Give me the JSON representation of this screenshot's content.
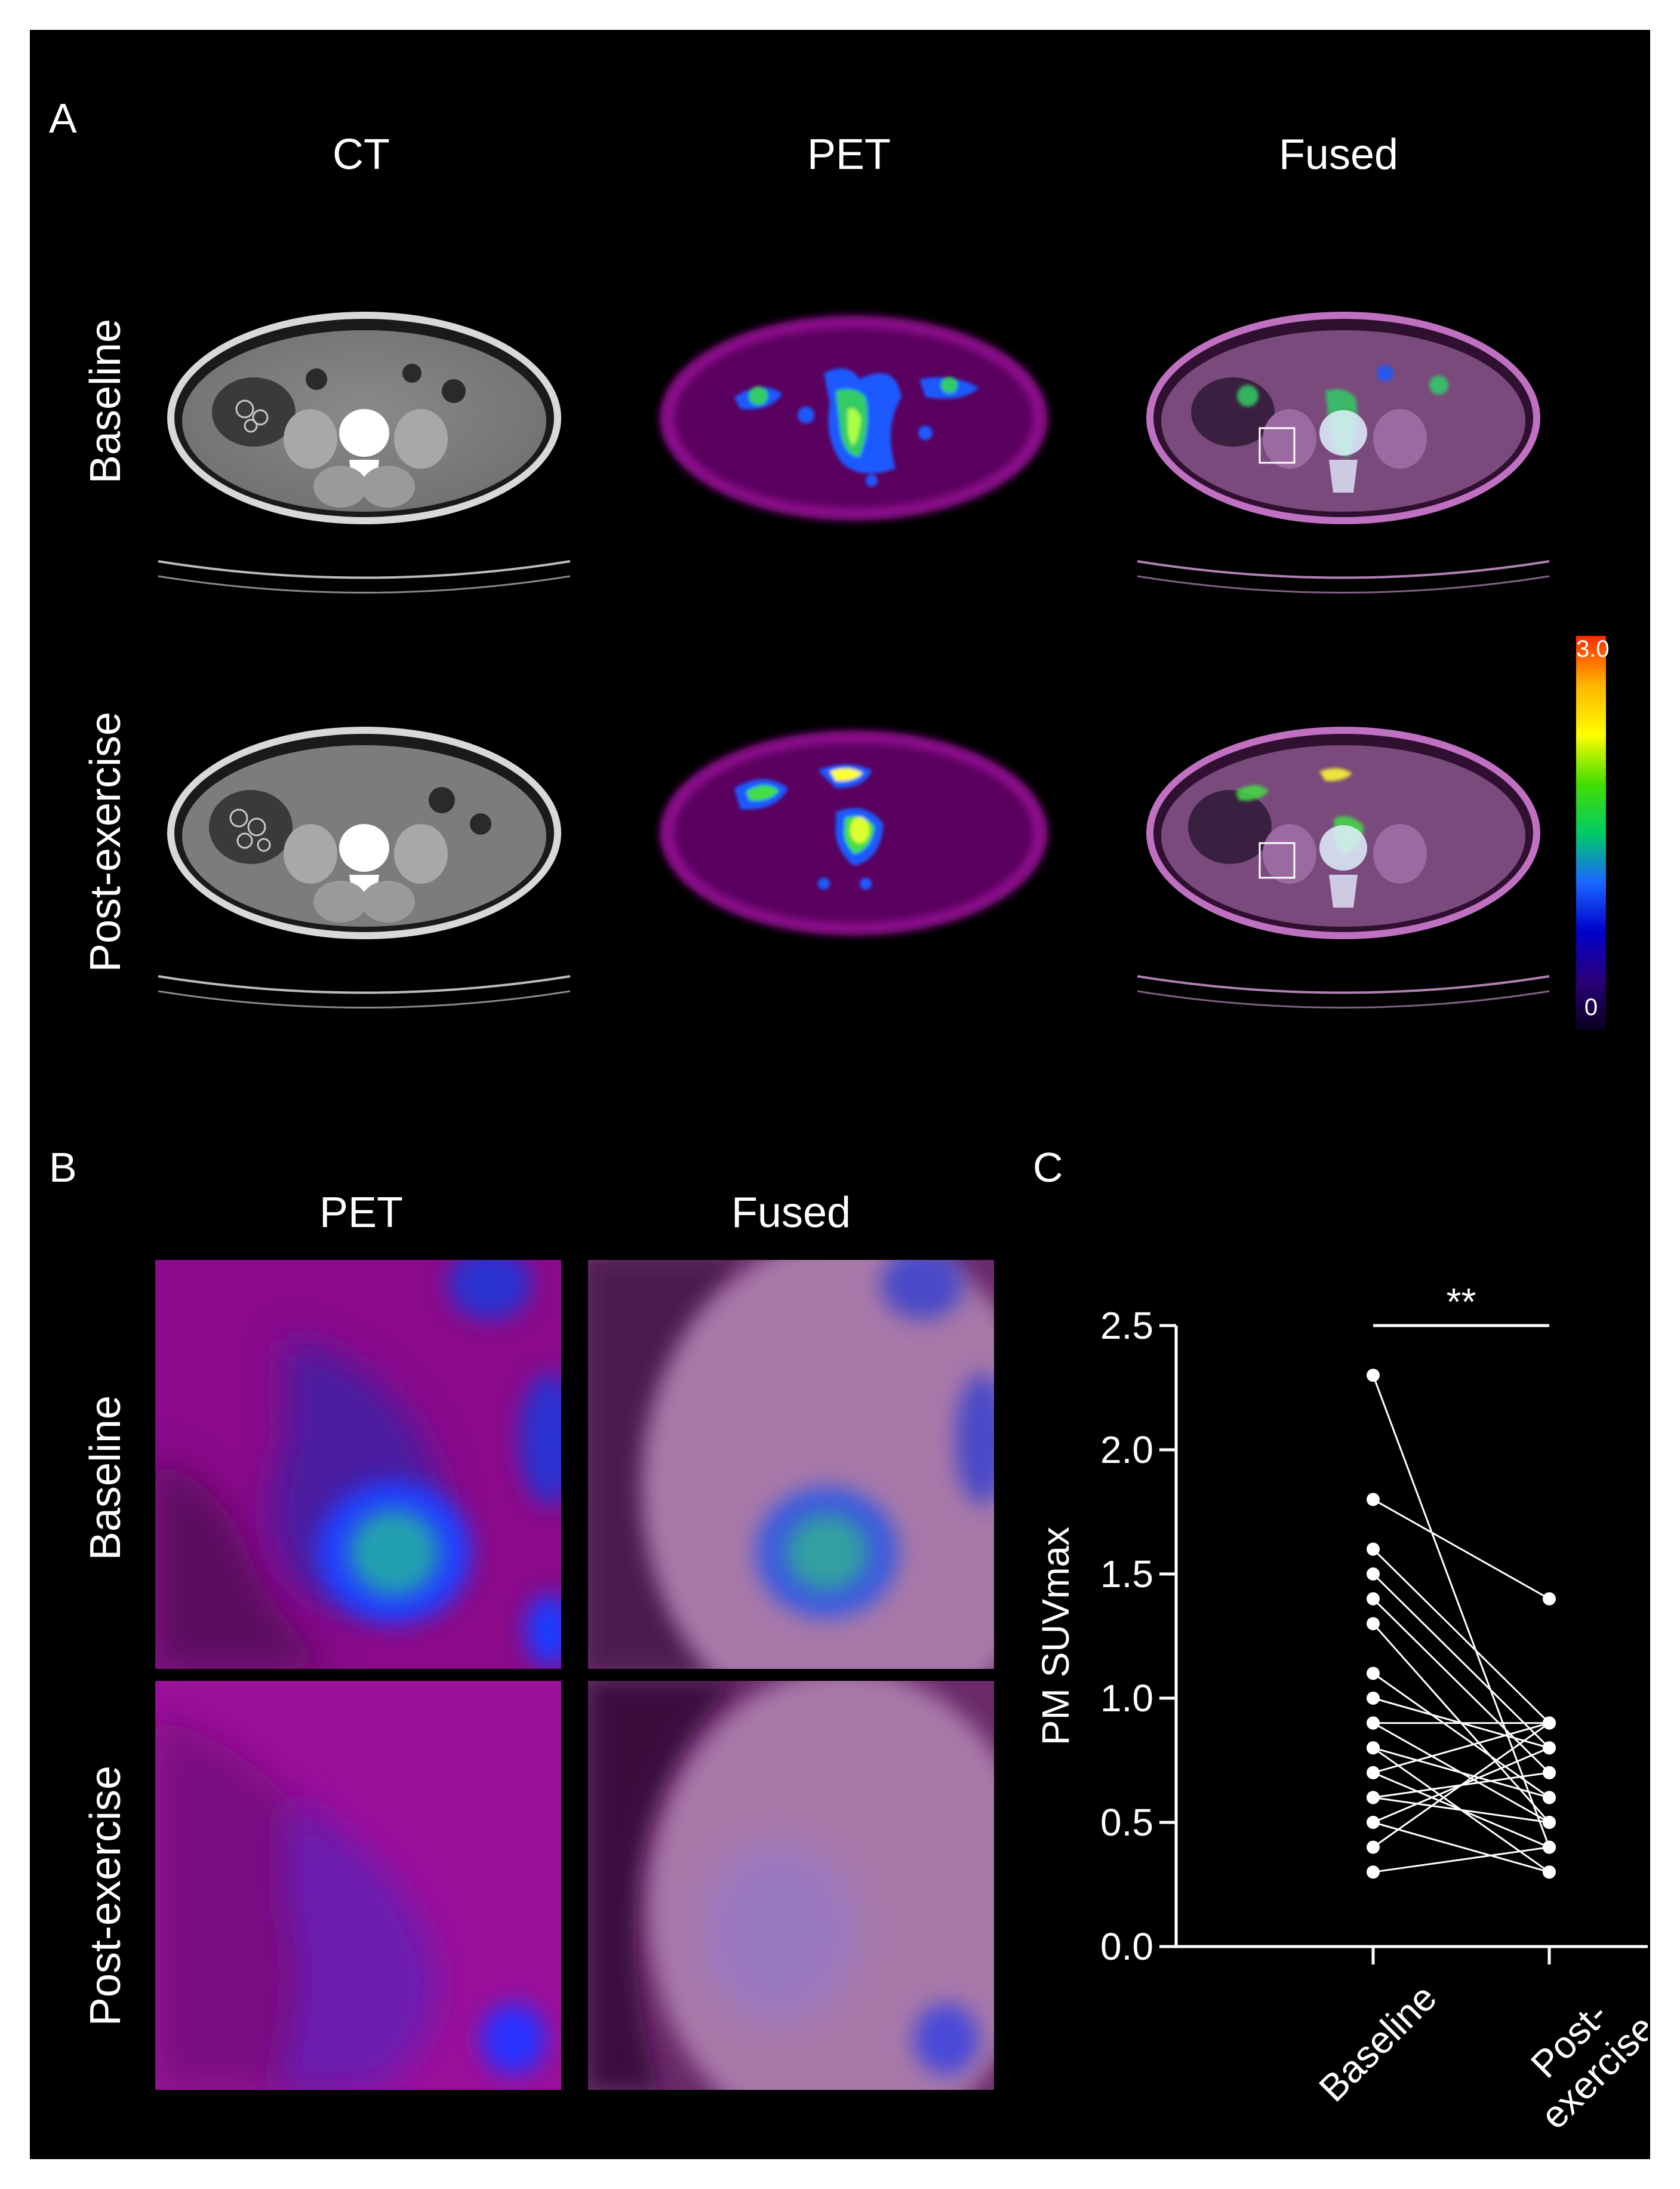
{
  "panels": {
    "a": {
      "letter": "A",
      "columns": [
        "CT",
        "PET",
        "Fused"
      ],
      "rows": [
        "Baseline",
        "Post-exercise"
      ]
    },
    "b": {
      "letter": "B",
      "columns": [
        "PET",
        "Fused"
      ],
      "rows": [
        "Baseline",
        "Post-exercise"
      ]
    },
    "c": {
      "letter": "C"
    }
  },
  "colorbar": {
    "max_label": "3.0",
    "min_label": "0",
    "colors": [
      "#ff2a00",
      "#ffb400",
      "#ffff00",
      "#44dd00",
      "#00cc66",
      "#1a66ff",
      "#0000cc",
      "#2a007a",
      "#0a0020"
    ]
  },
  "chart_data": {
    "type": "line",
    "subtype": "paired-dot",
    "categories": [
      "Baseline",
      "Post-exercise"
    ],
    "category_labels": [
      "Baseline",
      "Post-\nexercise"
    ],
    "ylabel": "PM SUVmax",
    "xlabel": "",
    "ylim": [
      0,
      2.5
    ],
    "yticks": [
      0.0,
      0.5,
      1.0,
      1.5,
      2.0,
      2.5
    ],
    "ytick_labels": [
      "0.0",
      "0.5",
      "1.0",
      "1.5",
      "2.0",
      "2.5"
    ],
    "significance": "**",
    "pairs": [
      [
        2.3,
        0.4
      ],
      [
        1.8,
        1.4
      ],
      [
        1.6,
        0.9
      ],
      [
        1.5,
        0.8
      ],
      [
        1.4,
        0.7
      ],
      [
        1.3,
        0.5
      ],
      [
        1.1,
        0.6
      ],
      [
        1.0,
        0.8
      ],
      [
        0.9,
        0.9
      ],
      [
        0.9,
        0.5
      ],
      [
        0.8,
        0.3
      ],
      [
        0.8,
        0.6
      ],
      [
        0.7,
        0.4
      ],
      [
        0.7,
        0.9
      ],
      [
        0.6,
        0.5
      ],
      [
        0.6,
        0.7
      ],
      [
        0.5,
        0.3
      ],
      [
        0.5,
        0.8
      ],
      [
        0.4,
        0.9
      ],
      [
        0.3,
        0.4
      ]
    ]
  }
}
